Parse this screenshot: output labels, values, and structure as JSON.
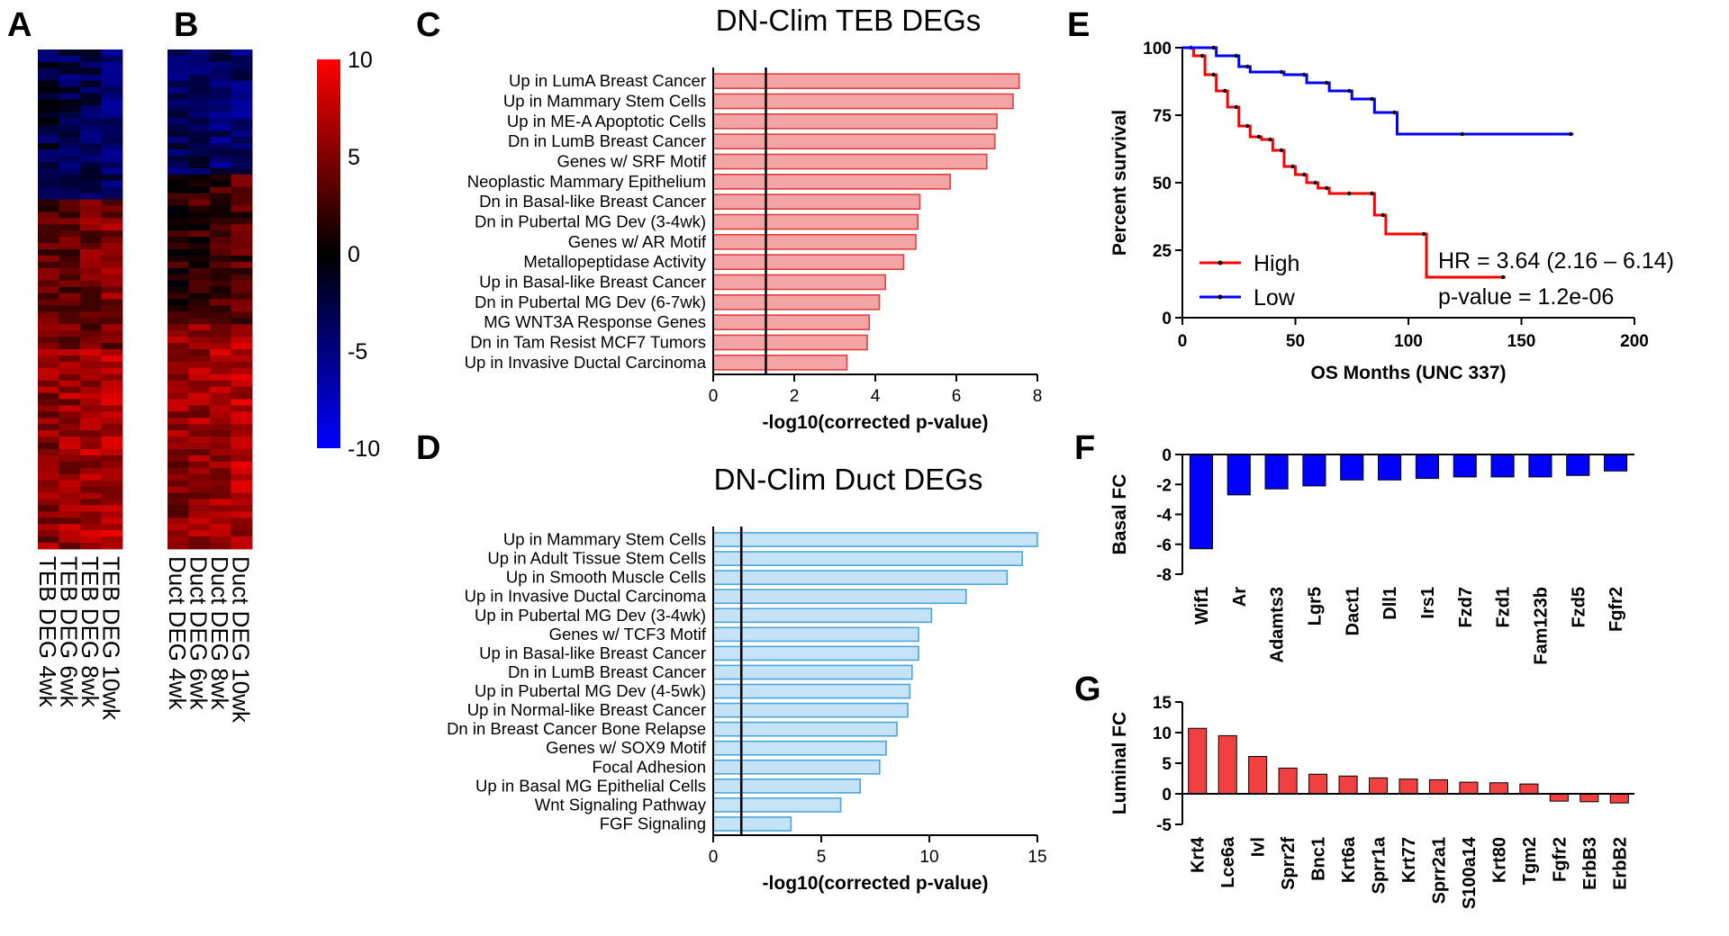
{
  "panel_labels": {
    "A": "A",
    "B": "B",
    "C": "C",
    "D": "D",
    "E": "E",
    "F": "F",
    "G": "G"
  },
  "colorbar": {
    "ticks": [
      "10",
      "5",
      "0",
      "-5",
      "-10"
    ],
    "min": -10,
    "max": 10,
    "high_color": "#ff0000",
    "mid_color": "#000000",
    "low_color": "#0000ff"
  },
  "chart_data": [
    {
      "id": "A",
      "type": "heatmap",
      "columns": [
        "TEB DEG 4wk",
        "TEB DEG 6wk",
        "TEB DEG 8wk",
        "TEB DEG 10wk"
      ]
    },
    {
      "id": "B",
      "type": "heatmap",
      "columns": [
        "Duct DEG 4wk",
        "Duct DEG 6wk",
        "Duct DEG 8wk",
        "Duct DEG 10wk"
      ]
    },
    {
      "id": "C",
      "type": "bar",
      "orientation": "horizontal",
      "title": "DN-Clim TEB DEGs",
      "xlabel": "-log10(corrected p-value)",
      "xlim": [
        0,
        8
      ],
      "xticks": [
        "0",
        "2",
        "4",
        "6",
        "8"
      ],
      "xtick_values": [
        0,
        2,
        4,
        6,
        8
      ],
      "threshold": 1.3,
      "fill": "#f4a4a4",
      "stroke": "#e04040",
      "categories": [
        "Up in LumA Breast Cancer",
        "Up in Mammary Stem Cells",
        "Up in ME-A Apoptotic Cells",
        "Dn in LumB Breast Cancer",
        "Genes w/ SRF Motif",
        "Neoplastic Mammary Epithelium",
        "Dn in Basal-like Breast Cancer",
        "Dn in Pubertal MG Dev (3-4wk)",
        "Genes w/ AR Motif",
        "Metallopeptidase Activity",
        "Up in Basal-like Breast Cancer",
        "Dn in Pubertal MG Dev (6-7wk)",
        "MG WNT3A Response Genes",
        "Dn in Tam Resist MCF7 Tumors",
        "Up in Invasive Ductal Carcinoma"
      ],
      "values": [
        7.55,
        7.4,
        7.0,
        6.95,
        6.75,
        5.85,
        5.1,
        5.05,
        5.0,
        4.7,
        4.25,
        4.1,
        3.85,
        3.8,
        3.3
      ]
    },
    {
      "id": "D",
      "type": "bar",
      "orientation": "horizontal",
      "title": "DN-Clim Duct DEGs",
      "xlabel": "-log10(corrected p-value)",
      "xlim": [
        0,
        15
      ],
      "xticks": [
        "0",
        "5",
        "10",
        "15"
      ],
      "xtick_values": [
        0,
        5,
        10,
        15
      ],
      "threshold": 1.3,
      "fill": "#c6e2f6",
      "stroke": "#4aa6dc",
      "categories": [
        "Up in Mammary Stem Cells",
        "Up in Adult Tissue Stem Cells",
        "Up in Smooth Muscle Cells",
        "Up in Invasive Ductal Carcinoma",
        "Up in Pubertal MG Dev (3-4wk)",
        "Genes w/ TCF3 Motif",
        "Up in Basal-like Breast Cancer",
        "Dn in LumB Breast Cancer",
        "Up in Pubertal MG Dev (4-5wk)",
        "Up in Normal-like Breast Cancer",
        "Dn in Breast Cancer Bone Relapse",
        "Genes w/ SOX9 Motif",
        "Focal Adhesion",
        "Up in Basal MG Epithelial Cells",
        "Wnt Signaling Pathway",
        "FGF Signaling"
      ],
      "values": [
        15.0,
        14.3,
        13.6,
        11.7,
        10.1,
        9.5,
        9.5,
        9.2,
        9.1,
        9.0,
        8.5,
        8.0,
        7.7,
        6.8,
        5.9,
        3.6
      ]
    },
    {
      "id": "E",
      "type": "line",
      "xlabel": "OS Months (UNC 337)",
      "ylabel": "Percent survival",
      "xlim": [
        0,
        200
      ],
      "ylim": [
        0,
        100
      ],
      "xticks": [
        "0",
        "50",
        "100",
        "150",
        "200"
      ],
      "xtick_values": [
        0,
        50,
        100,
        150,
        200
      ],
      "yticks": [
        "0",
        "25",
        "50",
        "75",
        "100"
      ],
      "ytick_values": [
        0,
        25,
        50,
        75,
        100
      ],
      "annotations": [
        "HR = 3.64 (2.16 – 6.14)",
        "p-value = 1.2e-06"
      ],
      "legend_position": "bottom-left",
      "series": [
        {
          "name": "High",
          "color": "#ff0000",
          "x": [
            0,
            5,
            10,
            15,
            20,
            25,
            30,
            35,
            40,
            45,
            50,
            55,
            60,
            65,
            75,
            85,
            90,
            108,
            143
          ],
          "y": [
            100,
            97,
            90,
            84,
            78,
            71,
            67,
            66,
            62,
            56,
            53,
            50,
            48,
            46,
            46,
            38,
            31,
            15,
            15
          ]
        },
        {
          "name": "Low",
          "color": "#0000ff",
          "x": [
            0,
            15,
            25,
            30,
            45,
            55,
            65,
            75,
            85,
            95,
            125,
            173
          ],
          "y": [
            100,
            97,
            93,
            91,
            90,
            87,
            84,
            81,
            76,
            68,
            68,
            68
          ]
        }
      ]
    },
    {
      "id": "F",
      "type": "bar",
      "ylabel": "Basal FC",
      "ylim": [
        -8,
        0
      ],
      "yticks": [
        "0",
        "-2",
        "-4",
        "-6",
        "-8"
      ],
      "ytick_values": [
        0,
        -2,
        -4,
        -6,
        -8
      ],
      "color": "#0000ff",
      "categories": [
        "Wif1",
        "Ar",
        "Adamts3",
        "Lgr5",
        "Dact1",
        "Dll1",
        "Irs1",
        "Fzd7",
        "Fzd1",
        "Fam123b",
        "Fzd5",
        "Fgfr2"
      ],
      "values": [
        -6.3,
        -2.7,
        -2.3,
        -2.1,
        -1.7,
        -1.7,
        -1.6,
        -1.5,
        -1.5,
        -1.5,
        -1.4,
        -1.1
      ]
    },
    {
      "id": "G",
      "type": "bar",
      "ylabel": "Luminal FC",
      "ylim": [
        -5,
        15
      ],
      "yticks": [
        "15",
        "10",
        "5",
        "0",
        "-5"
      ],
      "ytick_values": [
        15,
        10,
        5,
        0,
        -5
      ],
      "color": "#f04040",
      "categories": [
        "Krt4",
        "Lce6a",
        "Ivl",
        "Sprr2f",
        "Bnc1",
        "Krt6a",
        "Sprr1a",
        "Krt77",
        "Sprr2a1",
        "S100a14",
        "Krt80",
        "Tgm2",
        "Fgfr2",
        "ErbB3",
        "ErbB2"
      ],
      "values": [
        10.7,
        9.5,
        6.1,
        4.2,
        3.2,
        2.9,
        2.6,
        2.4,
        2.3,
        1.9,
        1.8,
        1.6,
        -1.2,
        -1.3,
        -1.5
      ]
    }
  ]
}
